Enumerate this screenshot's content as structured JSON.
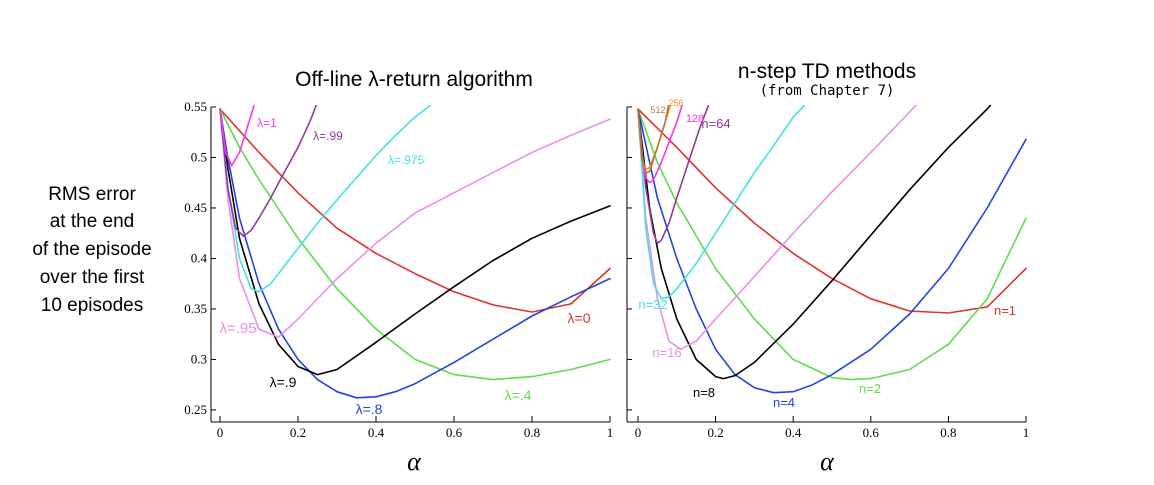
{
  "y_axis_label_lines": [
    "RMS error",
    "at the end",
    "of the episode",
    "over the first",
    "10 episodes"
  ],
  "chart_data": [
    {
      "type": "line",
      "title": "Off-line λ-return algorithm",
      "subtitle": "",
      "xlabel": "α",
      "xlim": [
        0,
        1
      ],
      "ylim": [
        0.24,
        0.55
      ],
      "xticks": [
        0,
        0.2,
        0.4,
        0.6,
        0.8,
        1
      ],
      "xtick_labels": [
        "0",
        "0.2",
        "0.4",
        "0.6",
        "0.8",
        "1"
      ],
      "yticks": [
        0.25,
        0.3,
        0.35,
        0.4,
        0.45,
        0.5,
        0.55
      ],
      "ytick_labels": [
        "0.25",
        "0.3",
        "0.35",
        "0.4",
        "0.45",
        "0.5",
        "0.55"
      ],
      "series": [
        {
          "name": "λ=0",
          "color": "#e0312b",
          "label_fontsize": 14,
          "x": [
            0,
            0.1,
            0.2,
            0.3,
            0.4,
            0.5,
            0.6,
            0.7,
            0.8,
            0.9,
            1.0
          ],
          "y": [
            0.548,
            0.505,
            0.465,
            0.43,
            0.405,
            0.385,
            0.367,
            0.354,
            0.347,
            0.355,
            0.39
          ]
        },
        {
          "name": "λ=.4",
          "color": "#5fdc4a",
          "label_fontsize": 14,
          "x": [
            0,
            0.05,
            0.1,
            0.2,
            0.3,
            0.4,
            0.5,
            0.6,
            0.7,
            0.8,
            0.9,
            1.0
          ],
          "y": [
            0.548,
            0.51,
            0.478,
            0.42,
            0.37,
            0.33,
            0.3,
            0.285,
            0.28,
            0.283,
            0.29,
            0.3
          ]
        },
        {
          "name": "λ=.8",
          "color": "#2244e0",
          "label_fontsize": 14,
          "x": [
            0,
            0.02,
            0.05,
            0.1,
            0.15,
            0.2,
            0.25,
            0.3,
            0.35,
            0.4,
            0.45,
            0.5,
            0.6,
            0.7,
            0.8,
            0.9,
            1.0
          ],
          "y": [
            0.548,
            0.5,
            0.44,
            0.375,
            0.33,
            0.3,
            0.28,
            0.268,
            0.262,
            0.263,
            0.268,
            0.276,
            0.297,
            0.32,
            0.343,
            0.362,
            0.38
          ]
        },
        {
          "name": "λ=.9",
          "color": "#000000",
          "label_fontsize": 14,
          "x": [
            0,
            0.02,
            0.05,
            0.1,
            0.15,
            0.2,
            0.25,
            0.3,
            0.4,
            0.5,
            0.6,
            0.7,
            0.8,
            0.9,
            1.0
          ],
          "y": [
            0.548,
            0.49,
            0.42,
            0.355,
            0.315,
            0.293,
            0.285,
            0.29,
            0.317,
            0.345,
            0.372,
            0.398,
            0.42,
            0.437,
            0.452
          ]
        },
        {
          "name": "λ=.95",
          "color": "#ee8ee8",
          "label_fontsize": 15,
          "x": [
            0,
            0.02,
            0.05,
            0.1,
            0.15,
            0.2,
            0.3,
            0.4,
            0.5,
            0.6,
            0.7,
            0.8,
            0.9,
            1.0
          ],
          "y": [
            0.548,
            0.46,
            0.38,
            0.33,
            0.322,
            0.34,
            0.38,
            0.415,
            0.445,
            0.465,
            0.485,
            0.505,
            0.522,
            0.538
          ]
        },
        {
          "name": "λ=.975",
          "color": "#44e2e2",
          "label_fontsize": 12,
          "x": [
            0,
            0.02,
            0.05,
            0.08,
            0.1,
            0.13,
            0.16,
            0.2,
            0.25,
            0.3,
            0.35,
            0.4,
            0.45,
            0.5,
            0.55
          ],
          "y": [
            0.548,
            0.47,
            0.4,
            0.37,
            0.367,
            0.375,
            0.39,
            0.41,
            0.435,
            0.458,
            0.48,
            0.502,
            0.522,
            0.54,
            0.555
          ]
        },
        {
          "name": "λ=.99",
          "color": "#8e3c96",
          "label_fontsize": 12,
          "x": [
            0,
            0.02,
            0.04,
            0.06,
            0.08,
            0.1,
            0.13,
            0.16,
            0.2,
            0.23,
            0.25
          ],
          "y": [
            0.548,
            0.47,
            0.43,
            0.422,
            0.428,
            0.44,
            0.46,
            0.482,
            0.51,
            0.535,
            0.555
          ]
        },
        {
          "name": "λ=1",
          "color": "#ff33ee",
          "label_fontsize": 12,
          "x": [
            0,
            0.015,
            0.03,
            0.05,
            0.07,
            0.09
          ],
          "y": [
            0.548,
            0.505,
            0.492,
            0.505,
            0.53,
            0.555
          ]
        }
      ]
    },
    {
      "type": "line",
      "title": "n-step TD methods",
      "subtitle": "(from Chapter 7)",
      "xlabel": "α",
      "xlim": [
        0,
        1
      ],
      "ylim": [
        0.24,
        0.55
      ],
      "xticks": [
        0,
        0.2,
        0.4,
        0.6,
        0.8,
        1
      ],
      "xtick_labels": [
        "0",
        "0.2",
        "0.4",
        "0.6",
        "0.8",
        "1"
      ],
      "yticks": [
        0.25,
        0.3,
        0.35,
        0.4,
        0.45,
        0.5,
        0.55
      ],
      "ytick_labels": [
        "",
        "",
        "",
        "",
        "",
        "",
        ""
      ],
      "series": [
        {
          "name": "n=1",
          "color": "#e0312b",
          "label_fontsize": 13,
          "x": [
            0,
            0.1,
            0.2,
            0.3,
            0.4,
            0.5,
            0.6,
            0.7,
            0.8,
            0.9,
            1.0
          ],
          "y": [
            0.548,
            0.51,
            0.47,
            0.435,
            0.405,
            0.38,
            0.36,
            0.348,
            0.346,
            0.352,
            0.39
          ]
        },
        {
          "name": "n=2",
          "color": "#5fdc4a",
          "label_fontsize": 13,
          "x": [
            0,
            0.05,
            0.1,
            0.2,
            0.3,
            0.4,
            0.5,
            0.55,
            0.6,
            0.7,
            0.8,
            0.9,
            1.0
          ],
          "y": [
            0.548,
            0.495,
            0.455,
            0.39,
            0.34,
            0.3,
            0.282,
            0.28,
            0.281,
            0.29,
            0.315,
            0.36,
            0.44
          ]
        },
        {
          "name": "n=4",
          "color": "#2244e0",
          "label_fontsize": 13,
          "x": [
            0,
            0.05,
            0.1,
            0.15,
            0.2,
            0.25,
            0.3,
            0.35,
            0.4,
            0.45,
            0.5,
            0.6,
            0.7,
            0.8,
            0.9,
            1.0
          ],
          "y": [
            0.548,
            0.46,
            0.4,
            0.35,
            0.31,
            0.285,
            0.272,
            0.267,
            0.268,
            0.275,
            0.285,
            0.31,
            0.345,
            0.39,
            0.45,
            0.518
          ]
        },
        {
          "name": "n=8",
          "color": "#000000",
          "label_fontsize": 13,
          "x": [
            0,
            0.03,
            0.06,
            0.1,
            0.15,
            0.2,
            0.22,
            0.25,
            0.3,
            0.4,
            0.5,
            0.6,
            0.7,
            0.8,
            0.9,
            0.95
          ],
          "y": [
            0.548,
            0.45,
            0.39,
            0.34,
            0.3,
            0.283,
            0.281,
            0.284,
            0.297,
            0.335,
            0.378,
            0.423,
            0.468,
            0.51,
            0.548,
            0.57
          ]
        },
        {
          "name": "n=16",
          "color": "#ee8ee8",
          "label_fontsize": 13,
          "x": [
            0,
            0.02,
            0.05,
            0.08,
            0.11,
            0.15,
            0.2,
            0.3,
            0.4,
            0.5,
            0.6,
            0.7,
            0.75
          ],
          "y": [
            0.548,
            0.44,
            0.36,
            0.318,
            0.31,
            0.318,
            0.34,
            0.382,
            0.425,
            0.466,
            0.505,
            0.545,
            0.565
          ]
        },
        {
          "name": "n=32",
          "color": "#44e2e2",
          "label_fontsize": 13,
          "x": [
            0,
            0.02,
            0.04,
            0.06,
            0.08,
            0.1,
            0.15,
            0.2,
            0.25,
            0.3,
            0.35,
            0.4,
            0.45
          ],
          "y": [
            0.548,
            0.43,
            0.375,
            0.36,
            0.362,
            0.37,
            0.395,
            0.425,
            0.455,
            0.485,
            0.512,
            0.54,
            0.56
          ]
        },
        {
          "name": "n=64",
          "color": "#8e3c96",
          "label_fontsize": 13,
          "x": [
            0,
            0.02,
            0.04,
            0.05,
            0.06,
            0.08,
            0.1,
            0.13,
            0.16,
            0.19
          ],
          "y": [
            0.548,
            0.47,
            0.425,
            0.415,
            0.418,
            0.435,
            0.46,
            0.495,
            0.53,
            0.56
          ]
        },
        {
          "name": "128",
          "color": "#ff33ee",
          "label_fontsize": 11,
          "x": [
            0,
            0.01,
            0.02,
            0.03,
            0.04,
            0.06,
            0.08,
            0.1,
            0.12
          ],
          "y": [
            0.548,
            0.5,
            0.48,
            0.475,
            0.478,
            0.495,
            0.515,
            0.535,
            0.56
          ]
        },
        {
          "name": "256",
          "color": "#e89220",
          "label_fontsize": 9,
          "x": [
            0,
            0.01,
            0.02,
            0.03,
            0.05,
            0.07,
            0.09
          ],
          "y": [
            0.548,
            0.5,
            0.488,
            0.49,
            0.51,
            0.535,
            0.56
          ]
        },
        {
          "name": "512",
          "color": "#b07a3a",
          "label_fontsize": 9,
          "x": [
            0,
            0.01,
            0.02,
            0.03,
            0.05,
            0.07,
            0.08
          ],
          "y": [
            0.548,
            0.5,
            0.485,
            0.486,
            0.51,
            0.535,
            0.555
          ]
        }
      ]
    }
  ]
}
